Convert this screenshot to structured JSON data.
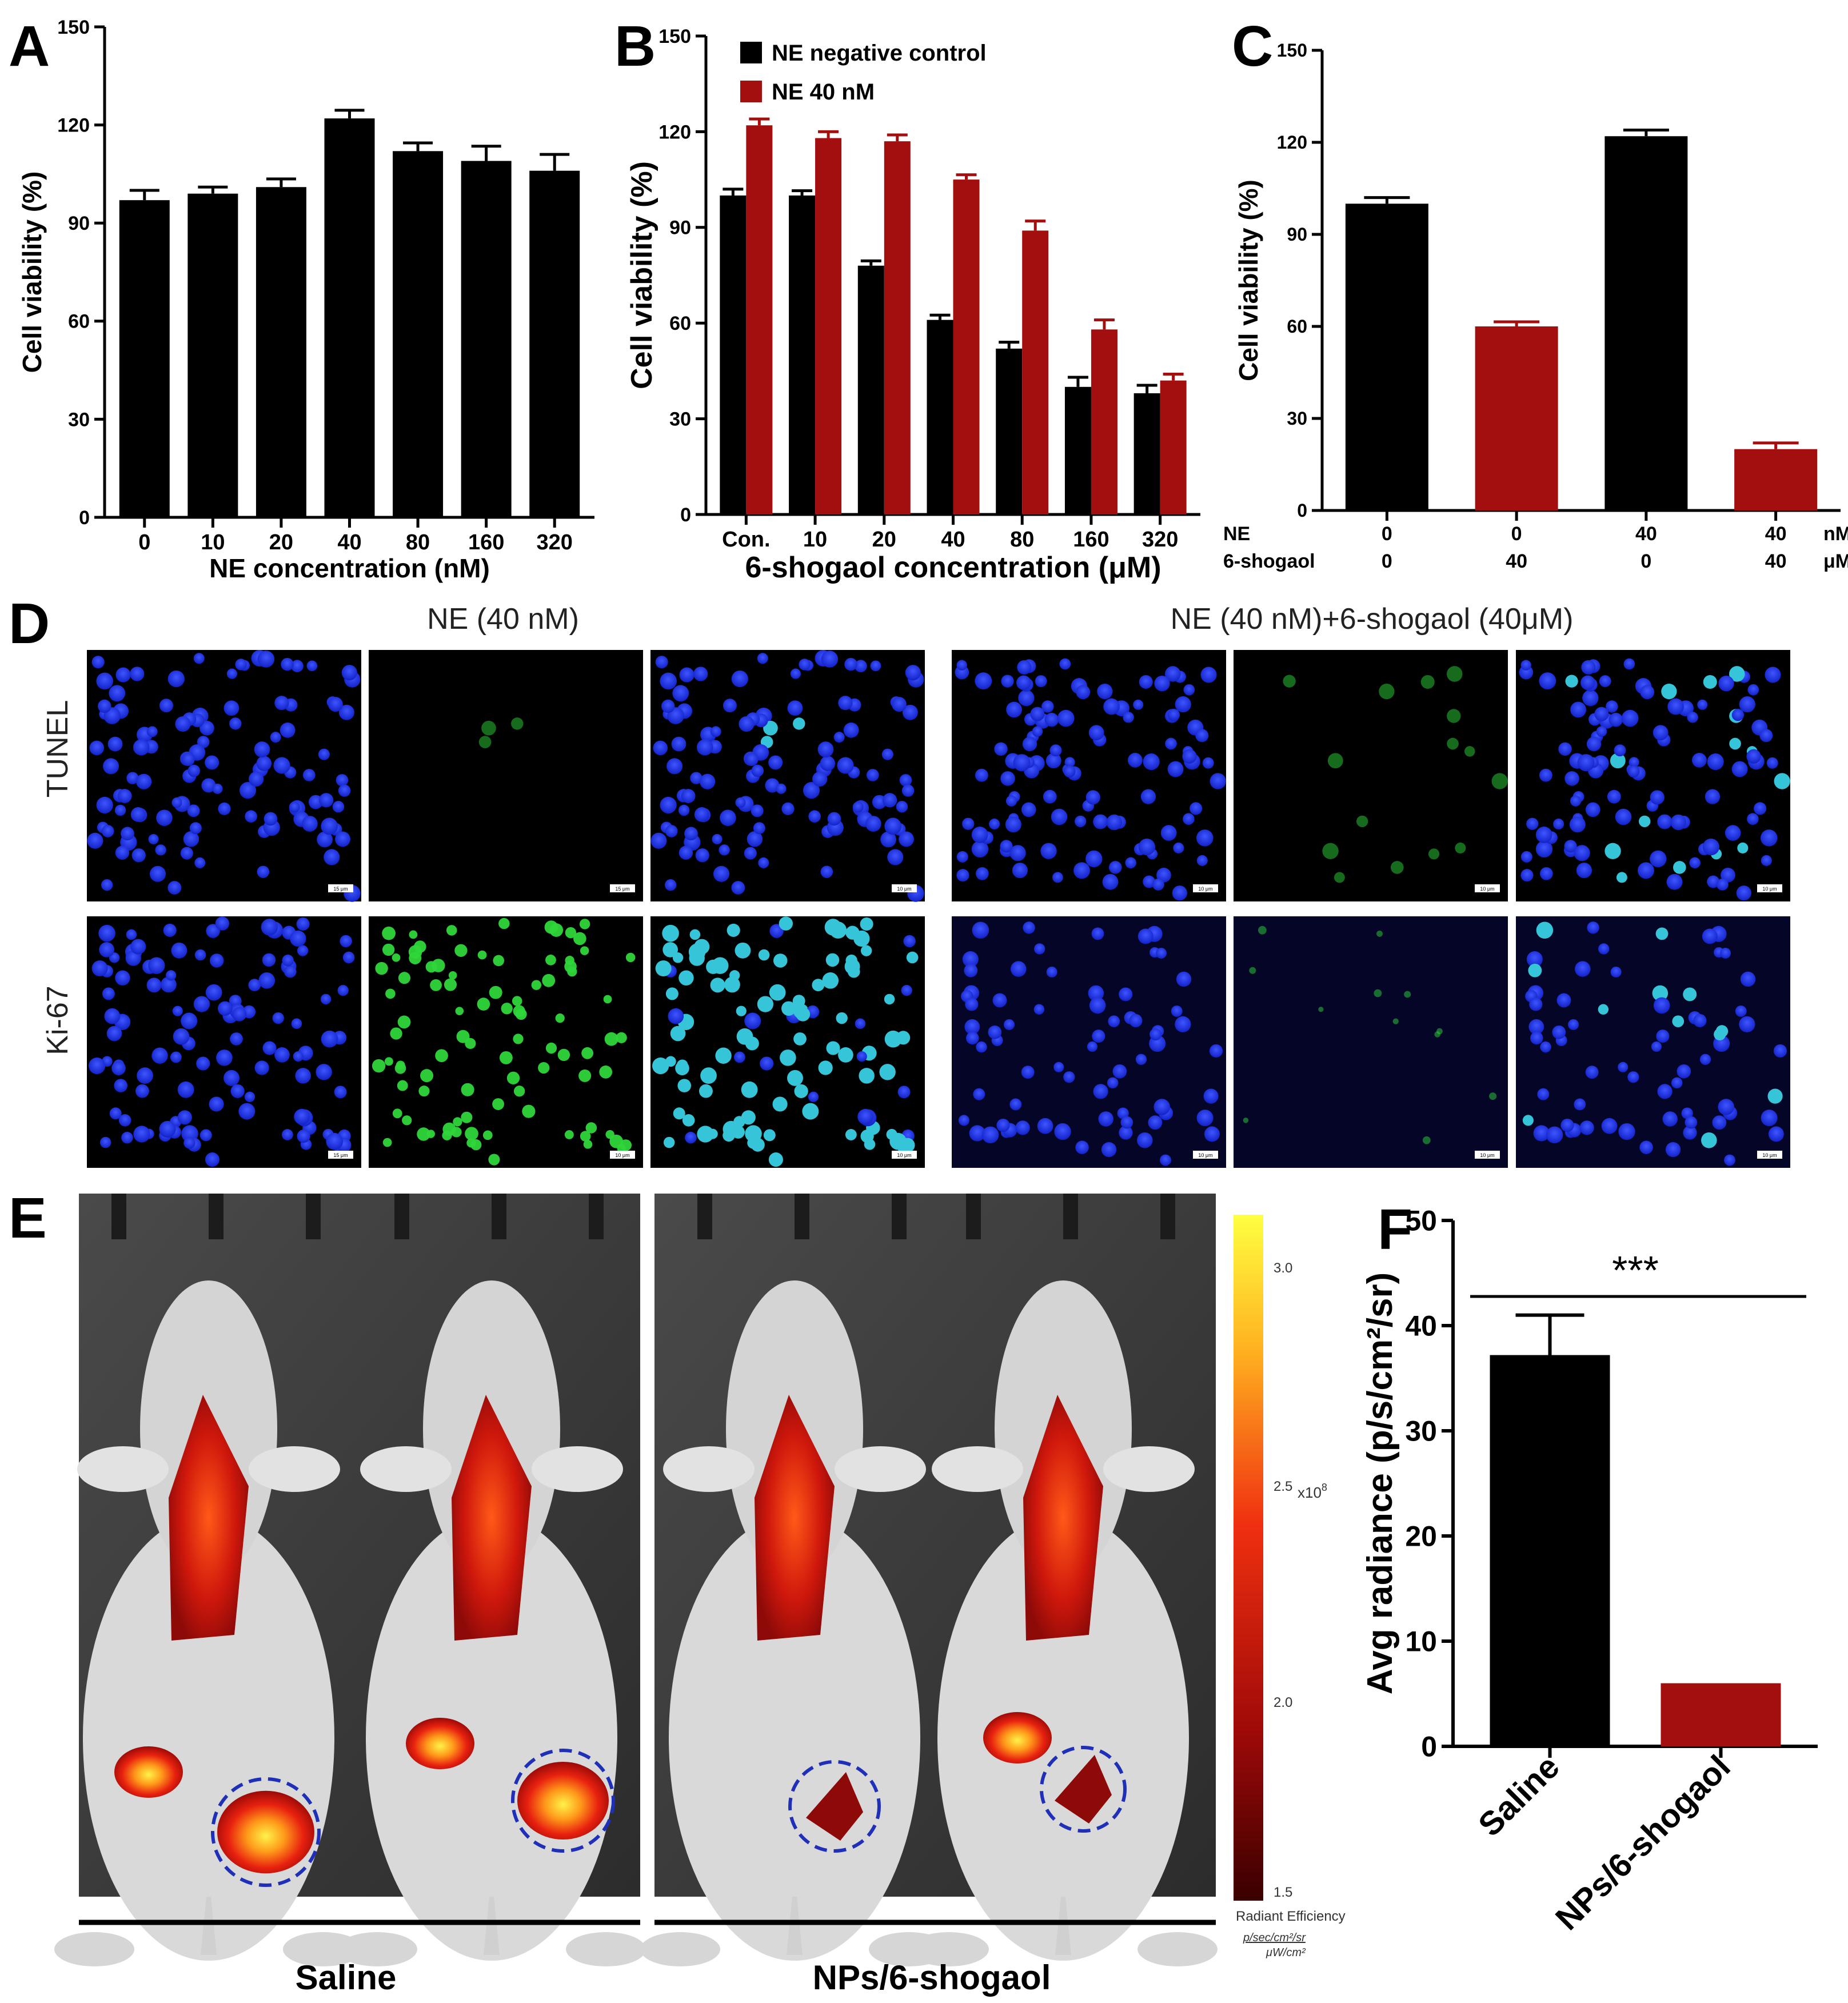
{
  "colors": {
    "black": "#000000",
    "red": "#A30F0F",
    "circle": "#1F2FB8",
    "nuclei": "#1A2FE0",
    "green": "#2ED63A"
  },
  "panel_labels": {
    "A": "A",
    "B": "B",
    "C": "C",
    "D": "D",
    "E": "E",
    "F": "F"
  },
  "chart_data": [
    {
      "id": "A",
      "type": "bar",
      "categories": [
        "0",
        "10",
        "20",
        "40",
        "80",
        "160",
        "320"
      ],
      "series": [
        {
          "values": [
            97,
            99,
            101,
            122,
            112,
            109,
            106
          ],
          "errors": [
            3,
            2,
            2.5,
            2.5,
            2.5,
            4.5,
            5
          ],
          "color": "#000000"
        }
      ],
      "xlabel": "NE concentration (nM)",
      "ylabel": "Cell viability (%)",
      "ylim": [
        0,
        150
      ],
      "yticks": [
        "0",
        "30",
        "60",
        "90",
        "120",
        "150"
      ]
    },
    {
      "id": "B",
      "type": "bar",
      "categories": [
        "Con.",
        "10",
        "20",
        "40",
        "80",
        "160",
        "320"
      ],
      "series": [
        {
          "name": "NE negative control",
          "values": [
            100,
            100,
            78,
            61,
            52,
            40,
            38
          ],
          "errors": [
            2,
            1.5,
            1.5,
            1.5,
            2,
            3,
            2.5
          ],
          "color": "#000000"
        },
        {
          "name": "NE 40 nM",
          "values": [
            122,
            118,
            117,
            105,
            89,
            58,
            42
          ],
          "errors": [
            2,
            2,
            2,
            1.5,
            3,
            3,
            2
          ],
          "color": "#A30F0F"
        }
      ],
      "xlabel": "6-shogaol concentration (μM)",
      "ylabel": "Cell viability (%)",
      "ylim": [
        0,
        150
      ],
      "yticks": [
        "0",
        "30",
        "60",
        "90",
        "120",
        "150"
      ],
      "legend": "top-left"
    },
    {
      "id": "C",
      "type": "bar",
      "categories": [
        "0|0",
        "0|40",
        "40|0",
        "40|40"
      ],
      "series": [
        {
          "values": [
            100,
            60,
            122,
            20
          ],
          "errors": [
            2,
            1.5,
            2,
            2
          ],
          "colors": [
            "#000000",
            "#A30F0F",
            "#000000",
            "#A30F0F"
          ]
        }
      ],
      "ylabel": "Cell viability (%)",
      "ylim": [
        0,
        150
      ],
      "yticks": [
        "0",
        "30",
        "60",
        "90",
        "120",
        "150"
      ],
      "row_labels": [
        "NE",
        "6-shogaol"
      ],
      "row_values": [
        [
          "0",
          "0",
          "40",
          "40"
        ],
        [
          "0",
          "40",
          "0",
          "40"
        ]
      ],
      "row_units": [
        "nM",
        "μM"
      ]
    },
    {
      "id": "F",
      "type": "bar",
      "categories": [
        "Saline",
        "NPs/6-shogaol"
      ],
      "series": [
        {
          "values": [
            37.2,
            6
          ],
          "errors": [
            3.8,
            0
          ],
          "colors": [
            "#000000",
            "#A30F0F"
          ]
        }
      ],
      "ylabel": "Avg radiance (p/s/cm²/sr)",
      "ylim": [
        0,
        50
      ],
      "yticks": [
        "0",
        "10",
        "20",
        "30",
        "40",
        "50"
      ],
      "significance": "***"
    }
  ],
  "panelD": {
    "title_left": "NE (40 nM)",
    "title_right": "NE (40 nM)+6-shogaol (40μM)",
    "row1": "TUNEL",
    "row2": "Ki-67",
    "scalebars": [
      "15 μm",
      "15 μm",
      "10 μm",
      "10 μm",
      "10 μm",
      "10 μm",
      "15 μm",
      "10 μm",
      "10 μm",
      "10 μm",
      "10 μm",
      "10 μm"
    ]
  },
  "panelE": {
    "group1": "Saline",
    "group2": "NPs/6-shogaol",
    "colorbar": {
      "ticks": [
        "3.0",
        "2.5",
        "2.0",
        "1.5"
      ],
      "multiplier": "x10",
      "exponent": "8",
      "title": "Radiant Efficiency",
      "unit_num": "p/sec/cm²/sr",
      "unit_den": "μW/cm²"
    }
  }
}
